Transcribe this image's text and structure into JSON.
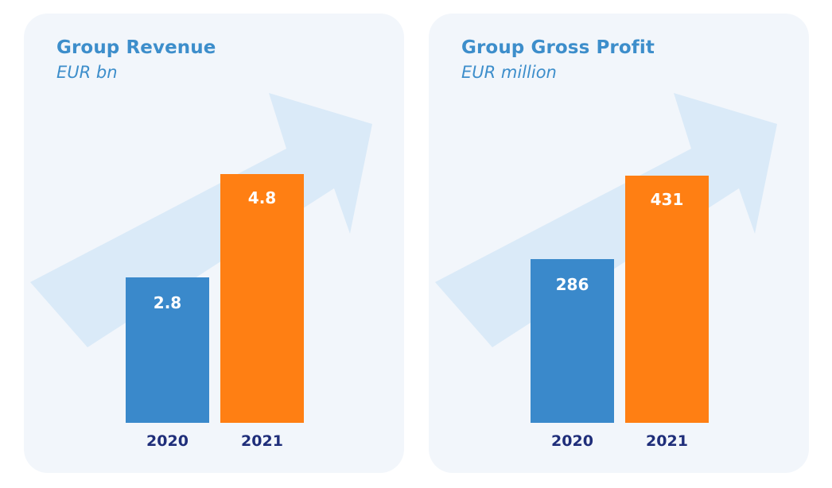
{
  "colors": {
    "panel_bg": "#f2f6fb",
    "title": "#3d8ecb",
    "arrow": "#d6e8f7",
    "bar_2020": "#3a89cb",
    "bar_2021": "#ff7f13",
    "category_label": "#1f2e7a",
    "value_label": "#ffffff"
  },
  "chart_data": [
    {
      "type": "bar",
      "title": "Group Revenue",
      "subtitle": "EUR bn",
      "categories": [
        "2020",
        "2021"
      ],
      "values": [
        2.8,
        4.8
      ],
      "value_labels": [
        "2.8",
        "4.8"
      ],
      "ylim": [
        0,
        7.6
      ],
      "grid": false,
      "legend": "none",
      "decoration": "rising-arrow"
    },
    {
      "type": "bar",
      "title": "Group Gross Profit",
      "subtitle": "EUR million",
      "categories": [
        "2020",
        "2021"
      ],
      "values": [
        286,
        431
      ],
      "value_labels": [
        "286",
        "431"
      ],
      "ylim": [
        0,
        687
      ],
      "grid": false,
      "legend": "none",
      "decoration": "rising-arrow"
    }
  ]
}
